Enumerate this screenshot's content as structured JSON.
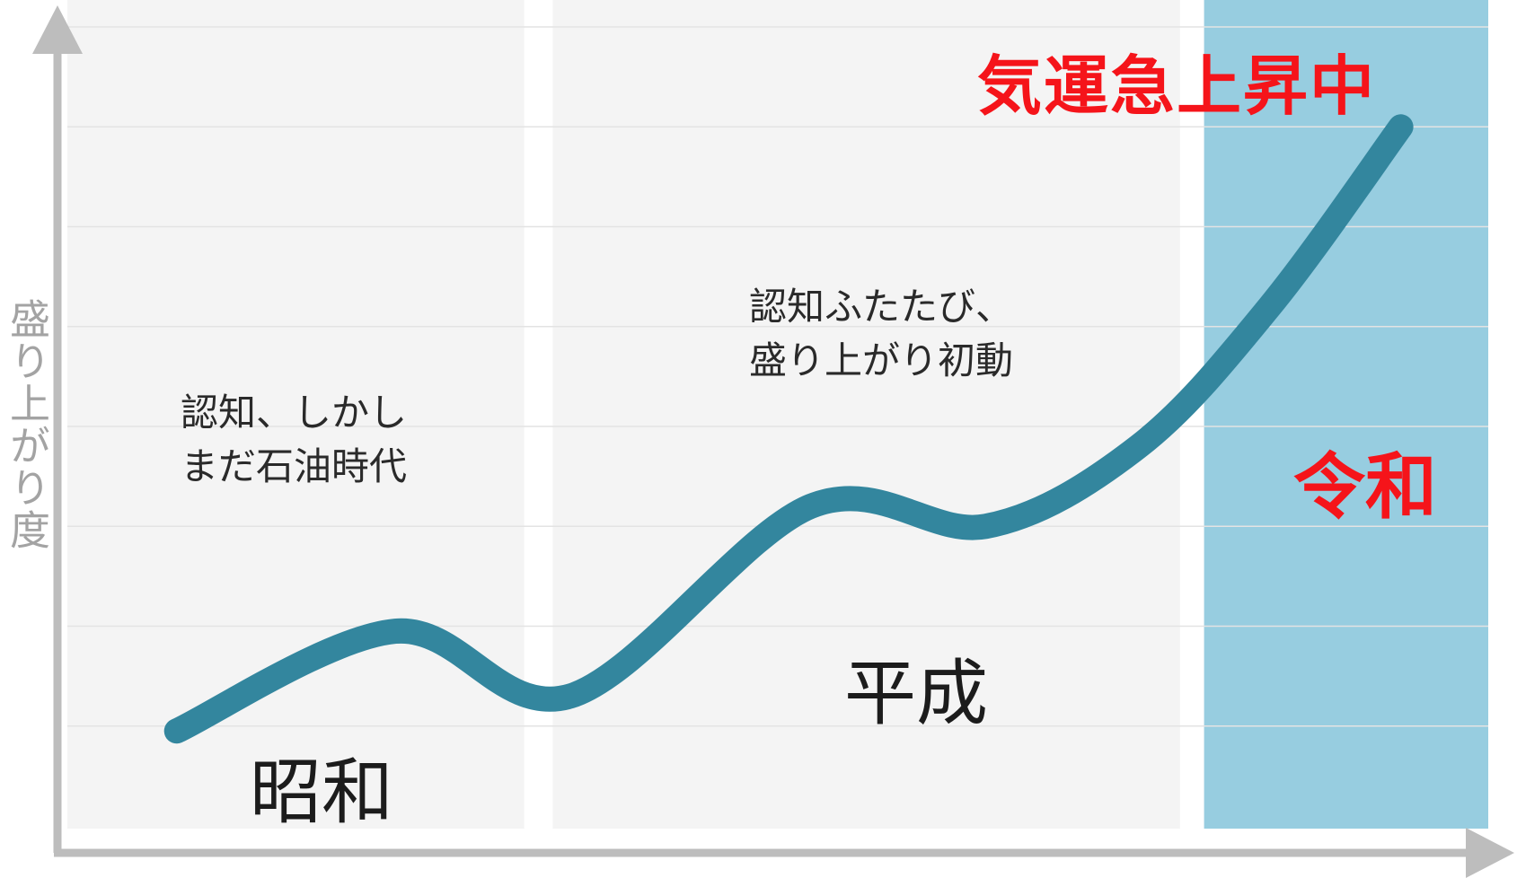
{
  "chart_data": {
    "type": "line",
    "title": "",
    "xlabel": "",
    "ylabel": "盛り上がり度",
    "ylim": [
      0,
      8
    ],
    "grid": true,
    "periods": [
      {
        "label": "昭和",
        "x_start": 0,
        "x_end": 2.09,
        "color": "#f4f4f4",
        "highlight": false
      },
      {
        "label": "平成",
        "x_start": 2.22,
        "x_end": 5.09,
        "color": "#f4f4f4",
        "highlight": false
      },
      {
        "label": "令和",
        "x_start": 5.2,
        "x_end": 6.5,
        "color": "#97cde0",
        "highlight": true
      }
    ],
    "xlim": [
      0,
      6.5
    ],
    "series": [
      {
        "color": "#33869e",
        "x": [
          0.5,
          1.5,
          2.3,
          3.4,
          4.2,
          4.9,
          5.5,
          6.1
        ],
        "y": [
          0.95,
          1.95,
          1.3,
          3.2,
          3.0,
          3.8,
          5.2,
          7.0
        ]
      }
    ],
    "annotations": [
      {
        "id": "showa_note",
        "text": "認知、しかし\nまだ石油時代"
      },
      {
        "id": "heisei_note",
        "text": "認知ふたたび、\n盛り上がり初動"
      }
    ],
    "headline": "気運急上昇中",
    "colors": {
      "axis": "#bdbdbd",
      "grid": "#e3e3e3",
      "line": "#33869e",
      "accent": "#f5141a"
    }
  }
}
